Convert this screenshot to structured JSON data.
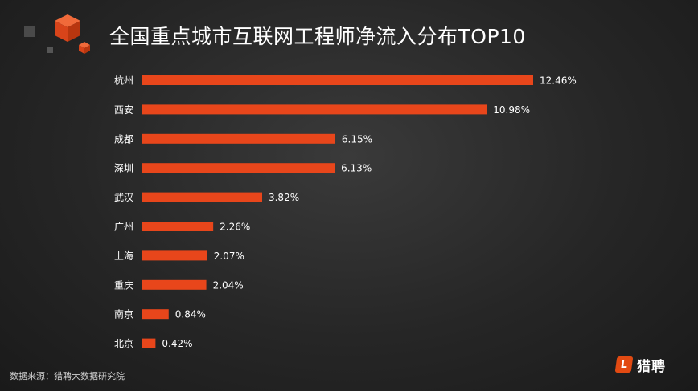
{
  "page": {
    "source": "数据来源：猎聘大数据研究院",
    "brand": "猎聘",
    "brand_badge": "L"
  },
  "colors": {
    "bar": "#e8461b",
    "background": "#262626",
    "text": "#ffffff",
    "logo_cube": "#e8461b",
    "logo_cube_dark": "#555555"
  },
  "chart_data": {
    "type": "bar",
    "orientation": "horizontal",
    "title": "全国重点城市互联网工程师净流入分布TOP10",
    "xlabel": "",
    "ylabel": "",
    "unit": "%",
    "xlim": [
      0,
      12.46
    ],
    "grid": false,
    "legend": "none",
    "categories": [
      "杭州",
      "西安",
      "成都",
      "深圳",
      "武汉",
      "广州",
      "上海",
      "重庆",
      "南京",
      "北京"
    ],
    "values": [
      12.46,
      10.98,
      6.15,
      6.13,
      3.82,
      2.26,
      2.07,
      2.04,
      0.84,
      0.42
    ],
    "data_labels": [
      "12.46%",
      "10.98%",
      "6.15%",
      "6.13%",
      "3.82%",
      "2.26%",
      "2.07%",
      "2.04%",
      "0.84%",
      "0.42%"
    ]
  }
}
